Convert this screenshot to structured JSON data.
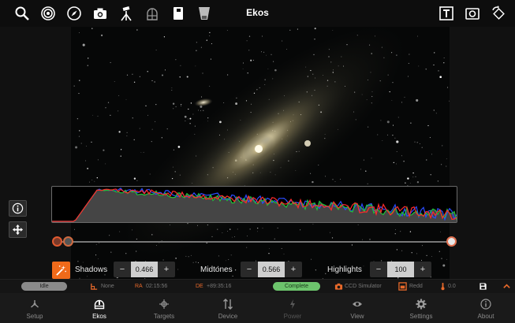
{
  "app": {
    "title": "Ekos"
  },
  "toolbar": {
    "left_icons": [
      "search-icon",
      "target-icon",
      "compass-icon",
      "camera-icon",
      "telescope-icon",
      "dome-icon",
      "notebook-icon",
      "flashlight-icon"
    ],
    "right_icons": [
      "text-overlay-icon",
      "snapshot-icon",
      "rotate-icon"
    ]
  },
  "stretch": {
    "shadows": {
      "label": "Shadows",
      "value": "0.466",
      "minus": "−",
      "plus": "+"
    },
    "midtones": {
      "label": "Midtones",
      "value": "0.566",
      "minus": "−",
      "plus": "+"
    },
    "highlights": {
      "label": "Highlights",
      "value": "100",
      "minus": "−",
      "plus": "+"
    }
  },
  "status": {
    "mount_state": "Idle",
    "mount_target": "None",
    "ra_label": "RA",
    "ra_value": "02:15:56",
    "de_label": "DE",
    "de_value": "+89:35:16",
    "capture_state": "Complete",
    "camera": "CCD Simulator",
    "filter": "Redd",
    "temperature": "0.0"
  },
  "nav": {
    "items": [
      {
        "label": "Setup",
        "icon": "setup-icon"
      },
      {
        "label": "Ekos",
        "icon": "ekos-icon",
        "active": true
      },
      {
        "label": "Targets",
        "icon": "targets-icon"
      },
      {
        "label": "Device",
        "icon": "device-icon"
      },
      {
        "label": "Power",
        "icon": "power-icon"
      },
      {
        "label": "View",
        "icon": "view-icon"
      },
      {
        "label": "Settings",
        "icon": "settings-icon"
      },
      {
        "label": "About",
        "icon": "about-icon"
      }
    ]
  },
  "colors": {
    "accent": "#f06a1a",
    "status_green": "#6cc46c",
    "status_grey": "#8a8a8a"
  }
}
